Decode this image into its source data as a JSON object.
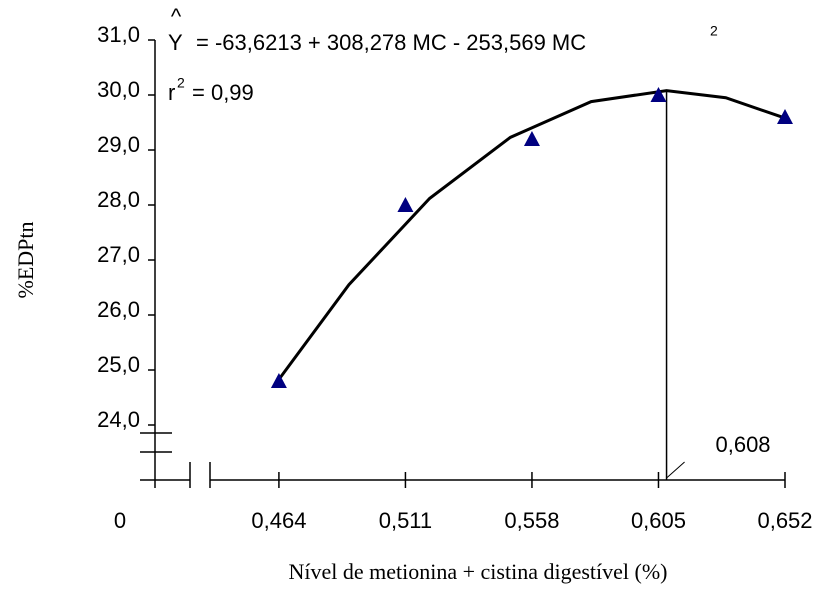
{
  "chart_data": {
    "type": "scatter",
    "x_label": "Nível de metionina + cistina digestível (%)",
    "y_label": "%EDPtn",
    "origin_label": "0",
    "equation": {
      "hat": "^",
      "lhs": "Y",
      "rhs": "= -63,6213 + 308,278 MC - 253,569 MC",
      "sup": "2"
    },
    "r_squared": {
      "r": "r",
      "sup": "2",
      "rhs": "= 0,99"
    },
    "x": [
      0.464,
      0.511,
      0.558,
      0.605,
      0.652
    ],
    "values": [
      24.8,
      28.0,
      29.2,
      30.0,
      29.6
    ],
    "color": "#000080",
    "fit": {
      "color": "#000000",
      "x": [
        0.464,
        0.49,
        0.52,
        0.55,
        0.58,
        0.608,
        0.63,
        0.652
      ],
      "values": [
        24.83,
        26.55,
        28.12,
        29.23,
        29.88,
        30.08,
        29.95,
        29.58
      ]
    },
    "annotation": {
      "text": "0,608",
      "x": 0.608
    },
    "xlim": [
      0.4384,
      0.652
    ],
    "ylim": [
      23,
      31
    ],
    "xticks": [
      {
        "value": 0.464,
        "label": "0,464"
      },
      {
        "value": 0.511,
        "label": "0,511"
      },
      {
        "value": 0.558,
        "label": "0,558"
      },
      {
        "value": 0.605,
        "label": "0,605"
      },
      {
        "value": 0.652,
        "label": "0,652"
      }
    ],
    "yticks": [
      {
        "value": 24,
        "label": "24,0"
      },
      {
        "value": 25,
        "label": "25,0"
      },
      {
        "value": 26,
        "label": "26,0"
      },
      {
        "value": 27,
        "label": "27,0"
      },
      {
        "value": 28,
        "label": "28,0"
      },
      {
        "value": 29,
        "label": "29,0"
      },
      {
        "value": 30,
        "label": "30,0"
      },
      {
        "value": 31,
        "label": "31,0"
      }
    ],
    "grid": false
  }
}
